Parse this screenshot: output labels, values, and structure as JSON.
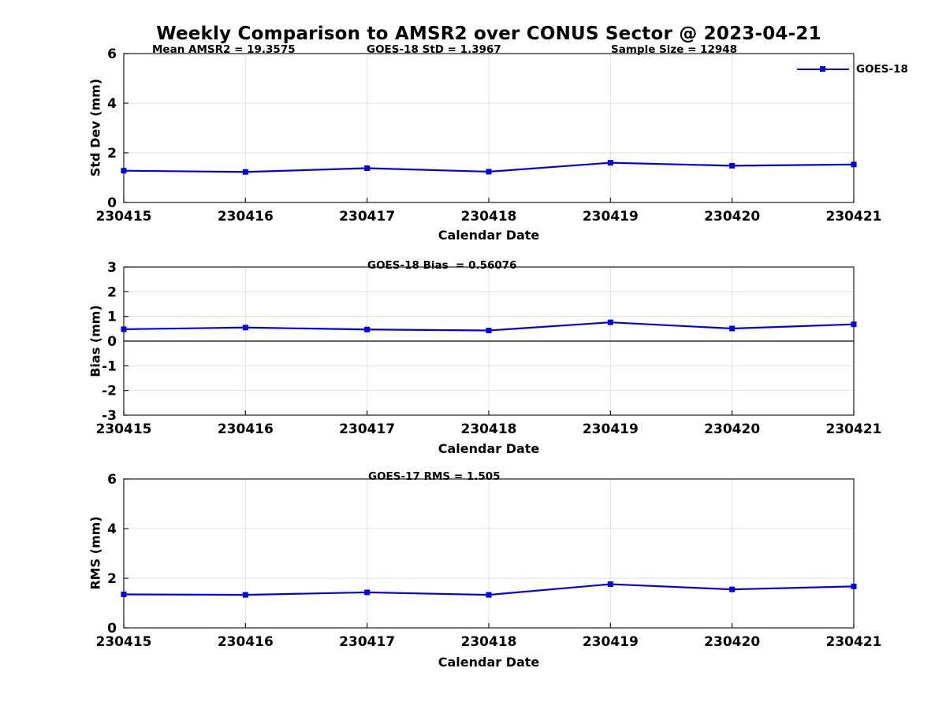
{
  "title": "Weekly Comparison to AMSR2 over CONUS Sector @ 2023-04-21",
  "legend": {
    "label": "GOES-18"
  },
  "colors": {
    "line": "#0000EE",
    "grid": "#e0e0e0",
    "spine": "#1a1a1a",
    "zero_line": "#000000"
  },
  "chart_data": [
    {
      "type": "line",
      "categories": [
        "230415",
        "230416",
        "230417",
        "230418",
        "230419",
        "230420",
        "230421"
      ],
      "series": [
        {
          "name": "GOES-18",
          "values": [
            1.28,
            1.23,
            1.38,
            1.24,
            1.6,
            1.48,
            1.53
          ]
        }
      ],
      "annotations": [
        {
          "text": "Mean AMSR2 = 19.3575"
        },
        {
          "text": "GOES-18 StD = 1.3967"
        },
        {
          "text": "Sample Size = 12948"
        }
      ],
      "xlabel": "Calendar Date",
      "ylabel": "Std Dev (mm)",
      "ylim": [
        0,
        6
      ],
      "yticks": [
        0,
        2,
        4,
        6
      ],
      "grid": true,
      "zero_line": false,
      "legend_position": "top-right-outside"
    },
    {
      "type": "line",
      "categories": [
        "230415",
        "230416",
        "230417",
        "230418",
        "230419",
        "230420",
        "230421"
      ],
      "series": [
        {
          "name": "GOES-18",
          "values": [
            0.48,
            0.55,
            0.47,
            0.43,
            0.76,
            0.51,
            0.68
          ]
        }
      ],
      "annotations": [
        {
          "text": "GOES-18 Bias  = 0.56076"
        }
      ],
      "xlabel": "Calendar Date",
      "ylabel": "Bias (mm)",
      "ylim": [
        -3,
        3
      ],
      "yticks": [
        -3,
        -2,
        -1,
        0,
        1,
        2,
        3
      ],
      "grid": true,
      "zero_line": true
    },
    {
      "type": "line",
      "categories": [
        "230415",
        "230416",
        "230417",
        "230418",
        "230419",
        "230420",
        "230421"
      ],
      "series": [
        {
          "name": "GOES-18",
          "values": [
            1.35,
            1.33,
            1.43,
            1.33,
            1.76,
            1.55,
            1.67
          ]
        }
      ],
      "annotations": [
        {
          "text": "GOES-17 RMS = 1.505"
        }
      ],
      "xlabel": "Calendar Date",
      "ylabel": "RMS (mm)",
      "ylim": [
        0,
        6
      ],
      "yticks": [
        0,
        2,
        4,
        6
      ],
      "grid": true,
      "zero_line": false
    }
  ]
}
